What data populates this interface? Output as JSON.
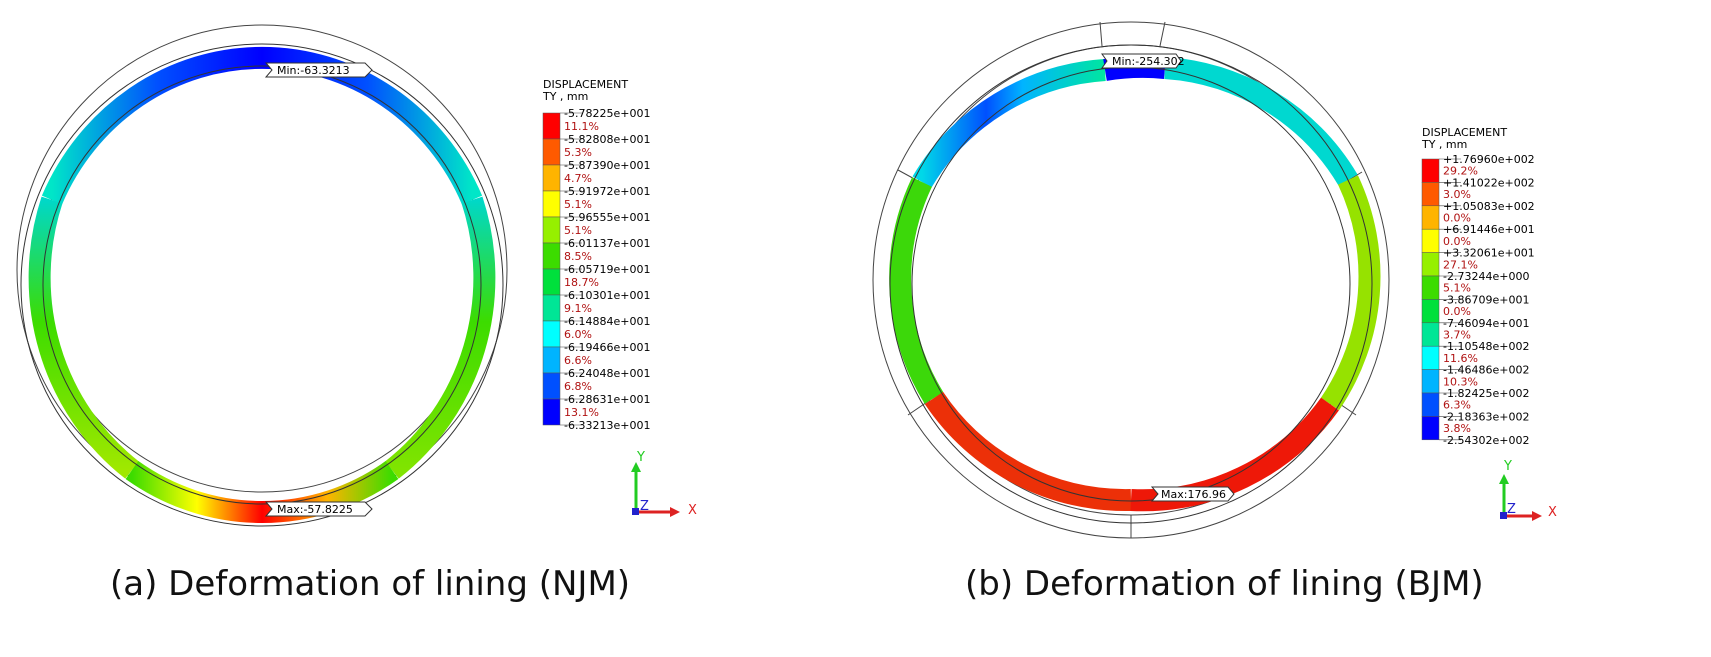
{
  "panels": [
    {
      "id": "a",
      "caption": "(a) Deformation of lining (NJM)",
      "legend": {
        "title_line1": "DISPLACEMENT",
        "title_line2": "TY , mm",
        "values": [
          "-5.78225e+001",
          "-5.82808e+001",
          "-5.87390e+001",
          "-5.91972e+001",
          "-5.96555e+001",
          "-6.01137e+001",
          "-6.05719e+001",
          "-6.10301e+001",
          "-6.14884e+001",
          "-6.19466e+001",
          "-6.24048e+001",
          "-6.28631e+001",
          "-6.33213e+001"
        ],
        "percents": [
          "11.1%",
          "5.3%",
          "4.7%",
          "5.1%",
          "5.1%",
          "8.5%",
          "18.7%",
          "9.1%",
          "6.0%",
          "6.6%",
          "6.8%",
          "13.1%"
        ],
        "colors": [
          "#ff0000",
          "#ff5a00",
          "#ffb400",
          "#ffff00",
          "#96f000",
          "#3cdc00",
          "#00e03c",
          "#00e696",
          "#00ffff",
          "#00b4ff",
          "#0050ff",
          "#0000ff"
        ]
      },
      "min_tag": "Min:-63.3213",
      "max_tag": "Max:-57.8225",
      "axes": {
        "y": "Y",
        "x": "X",
        "z": "Z"
      }
    },
    {
      "id": "b",
      "caption": "(b) Deformation of lining (BJM)",
      "legend": {
        "title_line1": "DISPLACEMENT",
        "title_line2": "TY , mm",
        "values": [
          "+1.76960e+002",
          "+1.41022e+002",
          "+1.05083e+002",
          "+6.91446e+001",
          "+3.32061e+001",
          "-2.73244e+000",
          "-3.86709e+001",
          "-7.46094e+001",
          "-1.10548e+002",
          "-1.46486e+002",
          "-1.82425e+002",
          "-2.18363e+002",
          "-2.54302e+002"
        ],
        "percents": [
          "29.2%",
          "3.0%",
          "0.0%",
          "0.0%",
          "27.1%",
          "5.1%",
          "0.0%",
          "3.7%",
          "11.6%",
          "10.3%",
          "6.3%",
          "3.8%"
        ],
        "colors": [
          "#ff0000",
          "#ff5a00",
          "#ffb400",
          "#ffff00",
          "#96f000",
          "#3cdc00",
          "#00e03c",
          "#00e696",
          "#00ffff",
          "#00b4ff",
          "#0050ff",
          "#0000ff"
        ]
      },
      "min_tag": "Min:-254.302",
      "max_tag": "Max:176.96",
      "axes": {
        "y": "Y",
        "x": "X",
        "z": "Z"
      }
    }
  ]
}
